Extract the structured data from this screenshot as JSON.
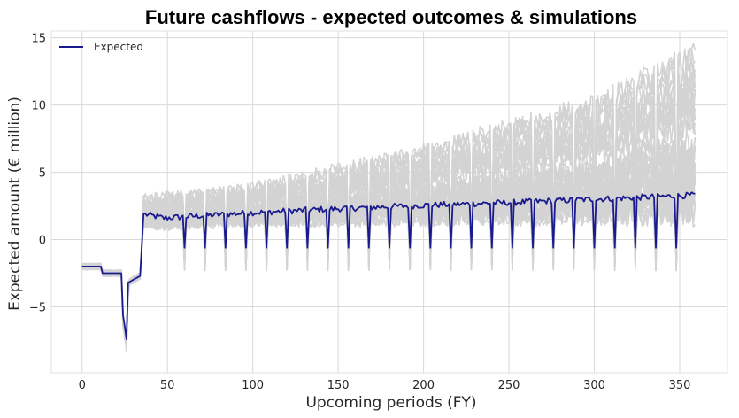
{
  "chart_data": {
    "type": "line",
    "title": "Future cashflows - expected outcomes & simulations",
    "xlabel": "Upcoming periods (FY)",
    "ylabel": "Expected amount (€ million)",
    "xlim": [
      -18,
      378
    ],
    "ylim": [
      -9.9,
      15.5
    ],
    "xticks": [
      0,
      50,
      100,
      150,
      200,
      250,
      300,
      350
    ],
    "yticks": [
      -5,
      0,
      5,
      10,
      15
    ],
    "grid": true,
    "legend": {
      "position": "top-left",
      "entries": [
        "Expected"
      ]
    },
    "colors": {
      "expected": "#1a1a8f",
      "simulations": "#d3d3d3",
      "grid": "#d9d9d9"
    },
    "series": [
      {
        "name": "Expected",
        "key_points": [
          {
            "x": 0,
            "y": -2.0
          },
          {
            "x": 11,
            "y": -2.0
          },
          {
            "x": 12,
            "y": -2.5
          },
          {
            "x": 23,
            "y": -2.5
          },
          {
            "x": 24,
            "y": -5.6
          },
          {
            "x": 26,
            "y": -7.4
          },
          {
            "x": 27,
            "y": -3.2
          },
          {
            "x": 34,
            "y": -2.7
          },
          {
            "x": 36,
            "y": 1.9
          },
          {
            "x": 48,
            "y": 1.6
          },
          {
            "x": 60,
            "y": 1.7
          },
          {
            "x": 100,
            "y": 2.0
          },
          {
            "x": 150,
            "y": 2.3
          },
          {
            "x": 200,
            "y": 2.55
          },
          {
            "x": 250,
            "y": 2.75
          },
          {
            "x": 300,
            "y": 3.0
          },
          {
            "x": 359,
            "y": 3.3
          }
        ],
        "periodic_dips": {
          "every": 12,
          "first_x": 60,
          "last_x": 348,
          "y": -0.6
        }
      },
      {
        "name": "Simulations",
        "band": [
          {
            "x": 36,
            "low": 1.0,
            "high": 3.0
          },
          {
            "x": 100,
            "low": 1.4,
            "high": 3.8
          },
          {
            "x": 200,
            "low": 1.6,
            "high": 6.5
          },
          {
            "x": 300,
            "low": 1.9,
            "high": 10.0
          },
          {
            "x": 359,
            "low": 2.1,
            "high": 13.7
          }
        ],
        "dip_low": -2.3
      }
    ]
  }
}
